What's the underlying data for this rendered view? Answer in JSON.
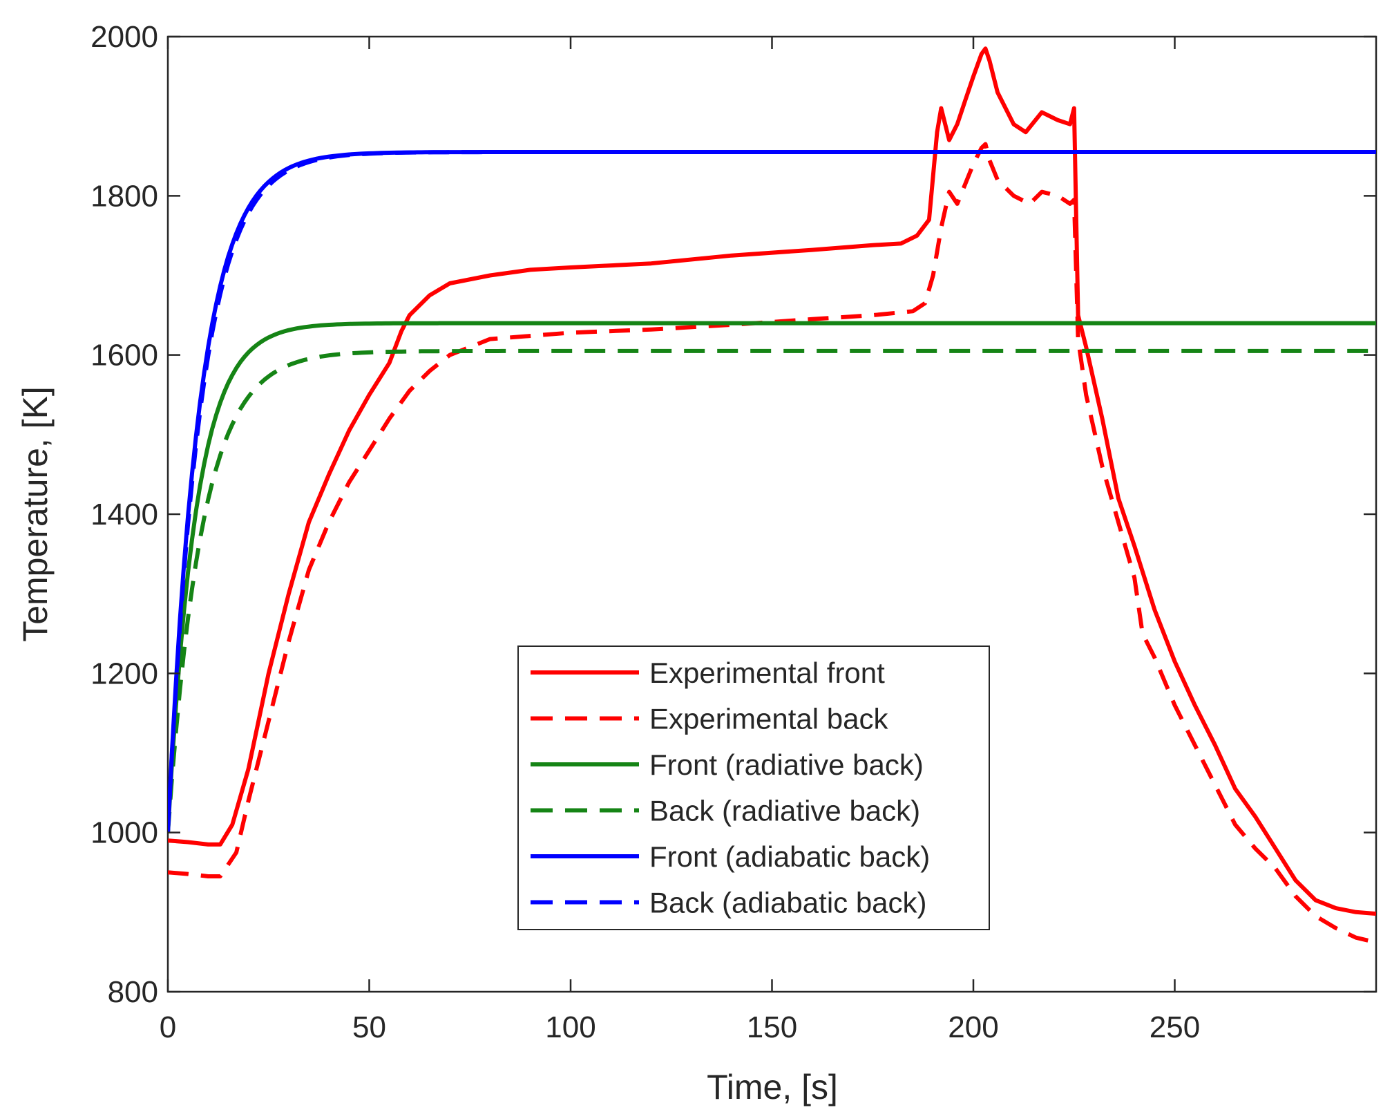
{
  "chart_data": {
    "type": "line",
    "title": "",
    "xlabel": "Time, [s]",
    "ylabel": "Temperature, [K]",
    "xlim": [
      0,
      300
    ],
    "ylim": [
      800,
      2000
    ],
    "xticks": [
      0,
      50,
      100,
      150,
      200,
      250
    ],
    "yticks": [
      800,
      1000,
      1200,
      1400,
      1600,
      1800,
      2000
    ],
    "grid": false,
    "legend_position": "bottom-center",
    "series": [
      {
        "name": "Experimental front",
        "color": "#ff0000",
        "style": "solid",
        "points": [
          [
            0,
            990
          ],
          [
            5,
            988
          ],
          [
            10,
            985
          ],
          [
            13,
            985
          ],
          [
            16,
            1010
          ],
          [
            20,
            1080
          ],
          [
            25,
            1200
          ],
          [
            30,
            1300
          ],
          [
            35,
            1390
          ],
          [
            40,
            1450
          ],
          [
            45,
            1505
          ],
          [
            50,
            1550
          ],
          [
            55,
            1590
          ],
          [
            58,
            1630
          ],
          [
            60,
            1650
          ],
          [
            65,
            1675
          ],
          [
            70,
            1690
          ],
          [
            80,
            1700
          ],
          [
            90,
            1707
          ],
          [
            100,
            1710
          ],
          [
            120,
            1715
          ],
          [
            140,
            1725
          ],
          [
            160,
            1732
          ],
          [
            175,
            1738
          ],
          [
            182,
            1740
          ],
          [
            186,
            1750
          ],
          [
            189,
            1770
          ],
          [
            191,
            1880
          ],
          [
            192,
            1910
          ],
          [
            194,
            1870
          ],
          [
            196,
            1890
          ],
          [
            198,
            1920
          ],
          [
            200,
            1950
          ],
          [
            202,
            1978
          ],
          [
            203,
            1985
          ],
          [
            204,
            1970
          ],
          [
            206,
            1930
          ],
          [
            210,
            1890
          ],
          [
            213,
            1880
          ],
          [
            217,
            1905
          ],
          [
            221,
            1895
          ],
          [
            224,
            1890
          ],
          [
            225,
            1910
          ],
          [
            226,
            1650
          ],
          [
            228,
            1610
          ],
          [
            232,
            1520
          ],
          [
            236,
            1420
          ],
          [
            240,
            1360
          ],
          [
            245,
            1280
          ],
          [
            250,
            1215
          ],
          [
            255,
            1160
          ],
          [
            260,
            1110
          ],
          [
            265,
            1055
          ],
          [
            270,
            1020
          ],
          [
            275,
            980
          ],
          [
            280,
            940
          ],
          [
            285,
            915
          ],
          [
            290,
            905
          ],
          [
            295,
            900
          ],
          [
            300,
            898
          ]
        ]
      },
      {
        "name": "Experimental back",
        "color": "#ff0000",
        "style": "dashed",
        "points": [
          [
            0,
            950
          ],
          [
            5,
            948
          ],
          [
            10,
            945
          ],
          [
            13,
            945
          ],
          [
            17,
            975
          ],
          [
            20,
            1040
          ],
          [
            25,
            1140
          ],
          [
            30,
            1240
          ],
          [
            35,
            1330
          ],
          [
            40,
            1390
          ],
          [
            45,
            1440
          ],
          [
            50,
            1480
          ],
          [
            55,
            1520
          ],
          [
            60,
            1555
          ],
          [
            65,
            1580
          ],
          [
            70,
            1600
          ],
          [
            80,
            1620
          ],
          [
            100,
            1628
          ],
          [
            120,
            1632
          ],
          [
            140,
            1638
          ],
          [
            160,
            1645
          ],
          [
            175,
            1650
          ],
          [
            185,
            1655
          ],
          [
            188,
            1665
          ],
          [
            190,
            1700
          ],
          [
            192,
            1760
          ],
          [
            194,
            1805
          ],
          [
            196,
            1790
          ],
          [
            198,
            1815
          ],
          [
            200,
            1840
          ],
          [
            202,
            1860
          ],
          [
            203,
            1865
          ],
          [
            204,
            1845
          ],
          [
            206,
            1820
          ],
          [
            210,
            1800
          ],
          [
            214,
            1790
          ],
          [
            217,
            1805
          ],
          [
            221,
            1800
          ],
          [
            224,
            1790
          ],
          [
            225,
            1795
          ],
          [
            226,
            1620
          ],
          [
            228,
            1550
          ],
          [
            232,
            1460
          ],
          [
            236,
            1390
          ],
          [
            240,
            1320
          ],
          [
            242,
            1250
          ],
          [
            245,
            1220
          ],
          [
            250,
            1160
          ],
          [
            255,
            1110
          ],
          [
            260,
            1060
          ],
          [
            265,
            1010
          ],
          [
            270,
            980
          ],
          [
            275,
            955
          ],
          [
            280,
            920
          ],
          [
            285,
            895
          ],
          [
            290,
            880
          ],
          [
            295,
            868
          ],
          [
            300,
            862
          ]
        ]
      },
      {
        "name": "Front (radiative back)",
        "color": "#158415",
        "style": "solid",
        "function": {
          "start": 1000,
          "end": 1640,
          "tau": 7
        }
      },
      {
        "name": "Back (radiative back)",
        "color": "#158415",
        "style": "dashed",
        "function": {
          "start": 1000,
          "end": 1605,
          "tau": 8.5
        }
      },
      {
        "name": "Front (adiabatic back)",
        "color": "#0000ff",
        "style": "solid",
        "function": {
          "start": 1000,
          "end": 1855,
          "tau": 8
        }
      },
      {
        "name": "Back (adiabatic back)",
        "color": "#0000ff",
        "style": "dashed",
        "function": {
          "start": 1000,
          "end": 1855,
          "tau": 8.3
        }
      }
    ]
  }
}
